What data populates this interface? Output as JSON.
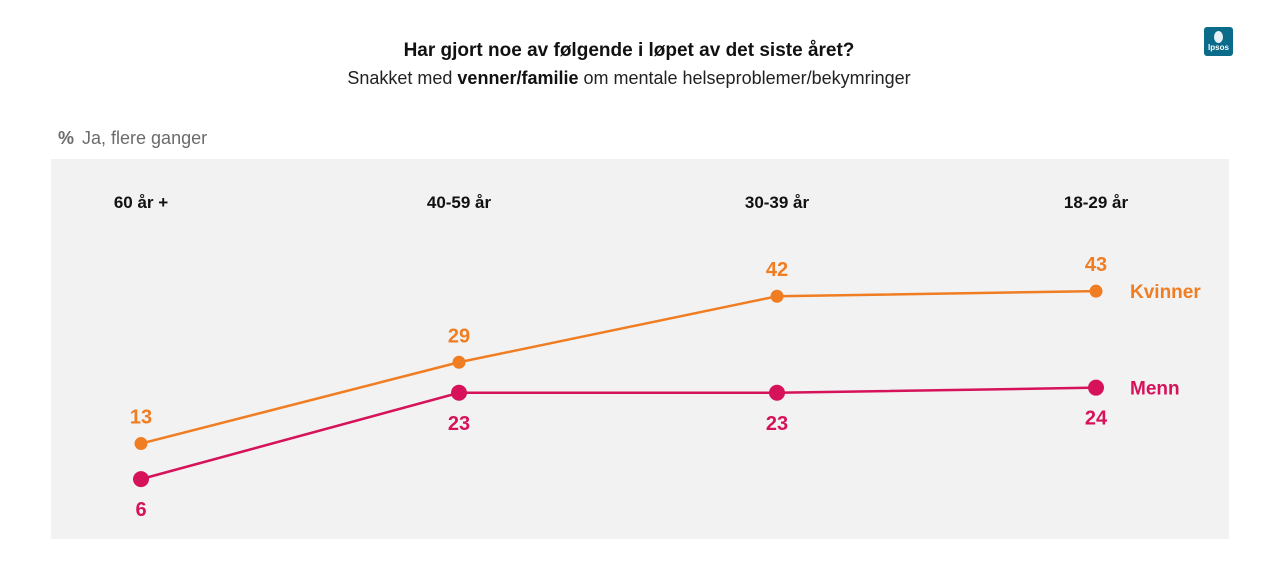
{
  "header": {
    "title": "Har gjort noe av følgende i løpet av det siste året?",
    "subtitle_prefix": "Snakket med ",
    "subtitle_bold": "venner/familie",
    "subtitle_suffix": " om mentale helseproblemer/bekymringer"
  },
  "logo": {
    "text": "Ipsos"
  },
  "measure": {
    "unit": "%",
    "label": "Ja, flere ganger"
  },
  "colors": {
    "kvinner": "#f07d22",
    "menn": "#d5125a",
    "plot_background": "#f2f2f2"
  },
  "chart_data": {
    "type": "line",
    "categories": [
      "60 år +",
      "40-59 år",
      "30-39 år",
      "18-29 år"
    ],
    "series": [
      {
        "name": "Kvinner",
        "values": [
          13,
          29,
          42,
          43
        ]
      },
      {
        "name": "Menn",
        "values": [
          6,
          23,
          23,
          24
        ]
      }
    ],
    "ylabel": "%",
    "grid": false
  }
}
